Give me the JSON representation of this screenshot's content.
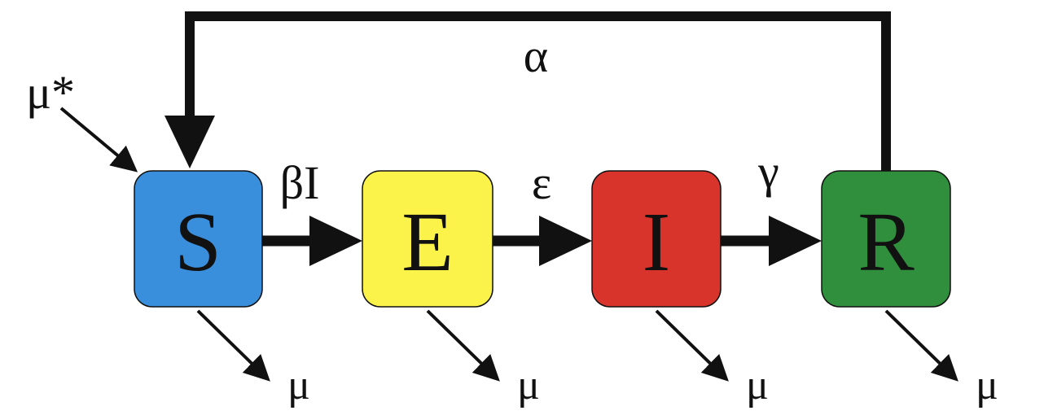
{
  "compartments": {
    "s": {
      "label": "S",
      "color": "#3a8fdc"
    },
    "e": {
      "label": "E",
      "color": "#fbf24a"
    },
    "i": {
      "label": "I",
      "color": "#d9342c"
    },
    "r": {
      "label": "R",
      "color": "#2f8f3c"
    }
  },
  "rates": {
    "birth": "μ*",
    "infection": "βI",
    "incubation": "ε",
    "recovery": "γ",
    "loss_of_immunity": "α"
  },
  "deaths": {
    "s": "μ",
    "e": "μ",
    "i": "μ",
    "r": "μ"
  }
}
